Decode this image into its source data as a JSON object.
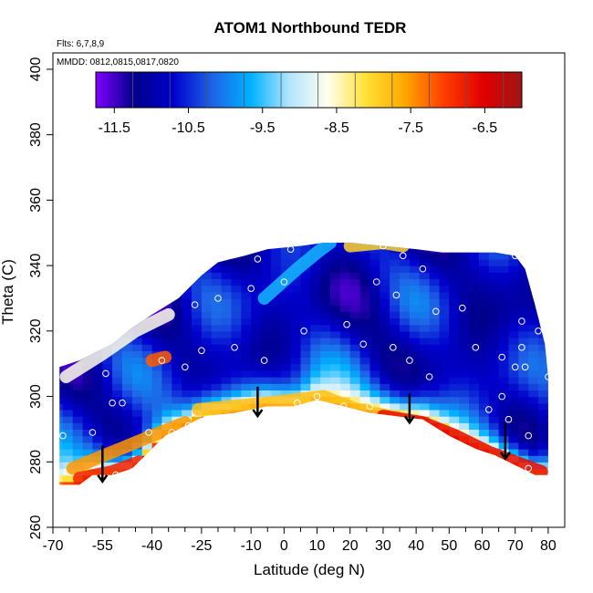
{
  "chart_data": {
    "type": "heatmap",
    "title": "ATOM1 Northbound TEDR",
    "notes": [
      "Flts: 6,7,8,9",
      "MMDD: 0812,0815,0817,0820"
    ],
    "xlabel": "Latitude (deg N)",
    "ylabel": "Theta (C)",
    "xlim": [
      -70,
      85
    ],
    "ylim": [
      260,
      405
    ],
    "x_ticks": [
      -70,
      -55,
      -40,
      -25,
      -10,
      0,
      10,
      20,
      30,
      40,
      50,
      60,
      70,
      80
    ],
    "x_minor_ticks": [
      -65,
      -60,
      -50,
      -45,
      -35,
      -30,
      -20,
      -15,
      -5,
      5,
      15,
      25,
      35,
      45,
      55,
      65,
      75
    ],
    "y_ticks": [
      260,
      280,
      300,
      320,
      340,
      360,
      380,
      400
    ],
    "colorbar": {
      "min": -11.75,
      "max": -6.0,
      "ticks": [
        -11.5,
        -10.5,
        -9.5,
        -8.5,
        -7.5,
        -6.5
      ],
      "tick_labels": [
        "-11.5",
        "-10.5",
        "-9.5",
        "-8.5",
        "-7.5",
        "-6.5"
      ],
      "colors": [
        "#7f00ff",
        "#00008b",
        "#0000cd",
        "#1e63e6",
        "#00b2ff",
        "#b3e5ff",
        "#ffffee",
        "#ffe033",
        "#ffa500",
        "#ff3c00",
        "#e00000",
        "#a01515"
      ]
    },
    "lower_boundary": [
      [
        -68,
        273
      ],
      [
        -62,
        273
      ],
      [
        -58,
        276
      ],
      [
        -52,
        276
      ],
      [
        -46,
        278
      ],
      [
        -42,
        282
      ],
      [
        -36,
        288
      ],
      [
        -30,
        291
      ],
      [
        -24,
        294
      ],
      [
        -15,
        295
      ],
      [
        -5,
        297
      ],
      [
        3,
        297
      ],
      [
        10,
        299
      ],
      [
        18,
        297
      ],
      [
        26,
        295
      ],
      [
        34,
        294
      ],
      [
        42,
        293
      ],
      [
        50,
        288
      ],
      [
        58,
        284
      ],
      [
        64,
        282
      ],
      [
        70,
        279
      ],
      [
        76,
        276
      ],
      [
        80,
        276
      ]
    ],
    "upper_boundary": [
      [
        -68,
        309
      ],
      [
        -62,
        311
      ],
      [
        -58,
        313
      ],
      [
        -52,
        316
      ],
      [
        -46,
        321
      ],
      [
        -40,
        325
      ],
      [
        -32,
        330
      ],
      [
        -25,
        337
      ],
      [
        -20,
        341
      ],
      [
        -12,
        343
      ],
      [
        -5,
        345
      ],
      [
        5,
        346
      ],
      [
        12,
        347
      ],
      [
        20,
        347
      ],
      [
        30,
        346
      ],
      [
        40,
        345
      ],
      [
        48,
        344
      ],
      [
        56,
        344
      ],
      [
        64,
        344
      ],
      [
        70,
        343
      ],
      [
        73,
        339
      ],
      [
        76,
        328
      ],
      [
        79,
        316
      ],
      [
        80,
        306
      ]
    ],
    "contrast_bands": [
      {
        "points": [
          [
            -64,
            278
          ],
          [
            -40,
            288
          ],
          [
            -30,
            292
          ]
        ],
        "value": -7.5
      },
      {
        "points": [
          [
            -62,
            275
          ],
          [
            -52,
            277
          ],
          [
            -44,
            280
          ]
        ],
        "value": -6.8
      },
      {
        "points": [
          [
            -26,
            296
          ],
          [
            -5,
            298
          ],
          [
            12,
            300
          ],
          [
            22,
            296
          ],
          [
            32,
            294
          ]
        ],
        "value": -7.8
      },
      {
        "points": [
          [
            30,
            294
          ],
          [
            42,
            292
          ],
          [
            52,
            288
          ],
          [
            62,
            283
          ],
          [
            70,
            280
          ],
          [
            78,
            277
          ]
        ],
        "value": -6.6
      },
      {
        "points": [
          [
            -66,
            306
          ],
          [
            -55,
            313
          ],
          [
            -45,
            320
          ],
          [
            -35,
            325
          ]
        ],
        "value": -8.6
      },
      {
        "points": [
          [
            -40,
            311
          ],
          [
            -36,
            312
          ]
        ],
        "value": -7.2
      },
      {
        "points": [
          [
            -6,
            330
          ],
          [
            4,
            339
          ],
          [
            10,
            344
          ],
          [
            14,
            347
          ]
        ],
        "value": -9.6
      },
      {
        "points": [
          [
            20,
            346
          ],
          [
            30,
            347
          ],
          [
            36,
            346
          ]
        ],
        "value": -8.0
      }
    ],
    "sample_points": [
      [
        -67,
        288
      ],
      [
        -58,
        289
      ],
      [
        -54,
        307
      ],
      [
        -52,
        298
      ],
      [
        -49,
        298
      ],
      [
        -51,
        276
      ],
      [
        -46,
        277
      ],
      [
        -41,
        289
      ],
      [
        -37,
        311
      ],
      [
        -34,
        289
      ],
      [
        -30,
        309
      ],
      [
        -29,
        291
      ],
      [
        -27,
        328
      ],
      [
        -25,
        314
      ],
      [
        -22,
        341
      ],
      [
        -20,
        330
      ],
      [
        -15,
        315
      ],
      [
        -10,
        333
      ],
      [
        -8,
        342
      ],
      [
        -6,
        311
      ],
      [
        0,
        335
      ],
      [
        2,
        345
      ],
      [
        4,
        298
      ],
      [
        6,
        320
      ],
      [
        10,
        300
      ],
      [
        14,
        348
      ],
      [
        18,
        297
      ],
      [
        19,
        322
      ],
      [
        24,
        316
      ],
      [
        26,
        297
      ],
      [
        28,
        335
      ],
      [
        30,
        346
      ],
      [
        33,
        315
      ],
      [
        34,
        331
      ],
      [
        36,
        343
      ],
      [
        38,
        311
      ],
      [
        42,
        339
      ],
      [
        44,
        306
      ],
      [
        46,
        326
      ],
      [
        54,
        327
      ],
      [
        58,
        315
      ],
      [
        62,
        296
      ],
      [
        66,
        300
      ],
      [
        66,
        312
      ],
      [
        68,
        293
      ],
      [
        70,
        343
      ],
      [
        70,
        309
      ],
      [
        72,
        315
      ],
      [
        72,
        323
      ],
      [
        73,
        309
      ],
      [
        74,
        278
      ],
      [
        74,
        288
      ],
      [
        77,
        320
      ],
      [
        80,
        306
      ]
    ],
    "arrows": [
      {
        "x": -55,
        "y_from": 285,
        "y_to": 274
      },
      {
        "x": -8,
        "y_from": 303,
        "y_to": 294
      },
      {
        "x": 38,
        "y_from": 301,
        "y_to": 292
      },
      {
        "x": 67,
        "y_from": 292,
        "y_to": 281
      }
    ]
  }
}
